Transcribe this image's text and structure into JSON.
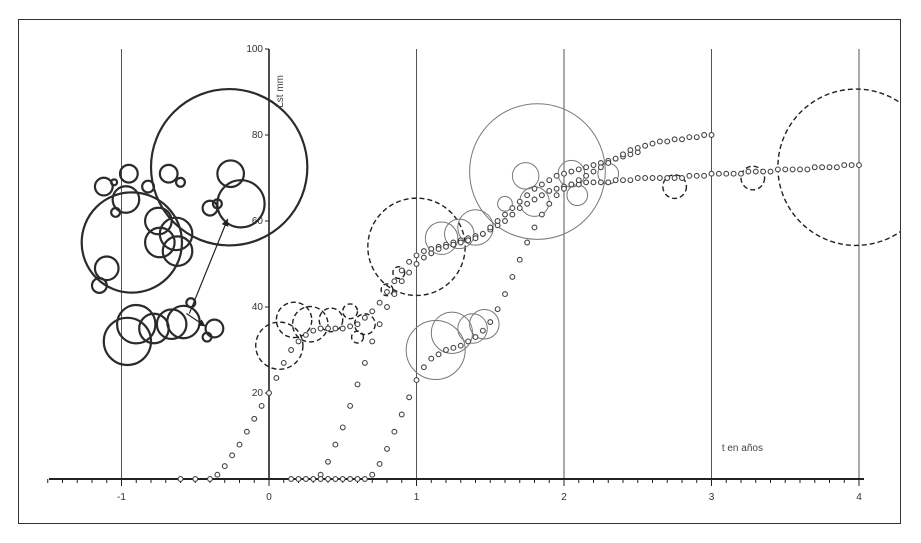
{
  "chart_data": {
    "type": "scatter",
    "title": "",
    "xlabel": "t en años",
    "ylabel": "Lst mm",
    "xlim": [
      -1.5,
      4.05
    ],
    "ylim": [
      0,
      100
    ],
    "x_ticks": [
      -1,
      0,
      1,
      2,
      3,
      4
    ],
    "x_tick_labels": [
      "-1",
      "0",
      "1",
      "2",
      "3",
      "4"
    ],
    "y_ticks": [
      20,
      40,
      60,
      80,
      100
    ],
    "y_tick_labels": [
      "20",
      "40",
      "60",
      "80",
      "100"
    ],
    "grid": "vertical lines at each year",
    "legend": "none",
    "series": [
      {
        "marker": "hollow circle",
        "points": [
          [
            -0.6,
            0
          ],
          [
            -0.5,
            0
          ],
          [
            -0.4,
            0
          ],
          [
            -0.35,
            1
          ],
          [
            -0.3,
            3
          ],
          [
            -0.25,
            5.5
          ],
          [
            -0.2,
            8
          ],
          [
            -0.15,
            11
          ],
          [
            -0.1,
            14
          ],
          [
            -0.05,
            17
          ],
          [
            0,
            20
          ],
          [
            0.05,
            23.5
          ],
          [
            0.1,
            27
          ],
          [
            0.15,
            30
          ],
          [
            0.2,
            32
          ],
          [
            0.25,
            33.5
          ],
          [
            0.3,
            34.5
          ],
          [
            0.35,
            35
          ],
          [
            0.4,
            35
          ],
          [
            0.45,
            35
          ],
          [
            0.5,
            35
          ],
          [
            0.55,
            35.5
          ],
          [
            0.6,
            36
          ],
          [
            0.65,
            37.5
          ],
          [
            0.7,
            39
          ],
          [
            0.75,
            41
          ],
          [
            0.8,
            43.5
          ],
          [
            0.85,
            46
          ],
          [
            0.9,
            48.5
          ],
          [
            0.95,
            50.5
          ],
          [
            1.0,
            52
          ],
          [
            1.05,
            53
          ],
          [
            1.1,
            53.5
          ],
          [
            1.15,
            54
          ],
          [
            1.2,
            54.5
          ],
          [
            1.25,
            55
          ],
          [
            1.3,
            55.5
          ],
          [
            1.35,
            56
          ],
          [
            1.4,
            56.5
          ],
          [
            1.45,
            57
          ],
          [
            1.5,
            58
          ],
          [
            1.55,
            59
          ],
          [
            1.6,
            60
          ],
          [
            1.65,
            61.5
          ],
          [
            1.7,
            63
          ],
          [
            1.75,
            64
          ],
          [
            1.8,
            65
          ],
          [
            1.85,
            66
          ],
          [
            1.9,
            67
          ],
          [
            1.95,
            67.5
          ],
          [
            2.0,
            68
          ],
          [
            2.05,
            68.5
          ],
          [
            2.1,
            68.5
          ],
          [
            2.15,
            69
          ],
          [
            2.2,
            69
          ],
          [
            2.25,
            69
          ],
          [
            2.3,
            69
          ],
          [
            2.35,
            69.5
          ],
          [
            2.4,
            69.5
          ],
          [
            2.45,
            69.5
          ],
          [
            2.5,
            70
          ],
          [
            2.55,
            70
          ],
          [
            2.6,
            70
          ],
          [
            2.65,
            70
          ],
          [
            2.7,
            70
          ],
          [
            2.75,
            70
          ],
          [
            2.8,
            70
          ],
          [
            2.85,
            70.5
          ],
          [
            2.9,
            70.5
          ],
          [
            2.95,
            70.5
          ],
          [
            3.0,
            71
          ],
          [
            3.05,
            71
          ],
          [
            3.1,
            71
          ],
          [
            3.15,
            71
          ],
          [
            3.2,
            71
          ],
          [
            3.25,
            71.5
          ],
          [
            3.3,
            71.5
          ],
          [
            3.35,
            71.5
          ],
          [
            3.4,
            71.5
          ],
          [
            3.45,
            72
          ],
          [
            3.5,
            72
          ],
          [
            3.55,
            72
          ],
          [
            3.6,
            72
          ],
          [
            3.65,
            72
          ],
          [
            3.7,
            72.5
          ],
          [
            3.75,
            72.5
          ],
          [
            3.8,
            72.5
          ],
          [
            3.85,
            72.5
          ],
          [
            3.9,
            73
          ],
          [
            3.95,
            73
          ],
          [
            4.0,
            73
          ]
        ]
      },
      {
        "marker": "hollow circle",
        "points": [
          [
            0.15,
            0
          ],
          [
            0.2,
            0
          ],
          [
            0.25,
            0
          ],
          [
            0.3,
            0
          ],
          [
            0.35,
            1
          ],
          [
            0.4,
            4
          ],
          [
            0.45,
            8
          ],
          [
            0.5,
            12
          ],
          [
            0.55,
            17
          ],
          [
            0.6,
            22
          ],
          [
            0.65,
            27
          ],
          [
            0.7,
            32
          ],
          [
            0.75,
            36
          ],
          [
            0.8,
            40
          ],
          [
            0.85,
            43
          ],
          [
            0.9,
            46
          ],
          [
            0.95,
            48
          ],
          [
            1.0,
            50
          ],
          [
            1.05,
            51.5
          ],
          [
            1.1,
            52.5
          ],
          [
            1.15,
            53.5
          ],
          [
            1.2,
            54
          ],
          [
            1.25,
            54.5
          ],
          [
            1.3,
            55
          ],
          [
            1.35,
            55.5
          ],
          [
            1.4,
            56
          ],
          [
            1.45,
            57
          ],
          [
            1.5,
            58.5
          ],
          [
            1.55,
            60
          ],
          [
            1.6,
            61.5
          ],
          [
            1.65,
            63
          ],
          [
            1.7,
            64.5
          ],
          [
            1.75,
            66
          ],
          [
            1.8,
            67.5
          ],
          [
            1.85,
            68.5
          ],
          [
            1.9,
            69.5
          ],
          [
            1.95,
            70.5
          ],
          [
            2.0,
            71
          ],
          [
            2.05,
            71.5
          ],
          [
            2.1,
            72
          ],
          [
            2.15,
            72.5
          ],
          [
            2.2,
            73
          ],
          [
            2.25,
            73.5
          ],
          [
            2.3,
            74
          ],
          [
            2.35,
            74.5
          ],
          [
            2.4,
            75
          ],
          [
            2.45,
            75.5
          ],
          [
            2.5,
            76
          ]
        ]
      },
      {
        "marker": "hollow circle",
        "points": [
          [
            0.35,
            0
          ],
          [
            0.4,
            0
          ],
          [
            0.45,
            0
          ],
          [
            0.5,
            0
          ],
          [
            0.55,
            0
          ],
          [
            0.6,
            0
          ],
          [
            0.65,
            0
          ],
          [
            0.7,
            1
          ],
          [
            0.75,
            3.5
          ],
          [
            0.8,
            7
          ],
          [
            0.85,
            11
          ],
          [
            0.9,
            15
          ],
          [
            0.95,
            19
          ],
          [
            1.0,
            23
          ],
          [
            1.05,
            26
          ],
          [
            1.1,
            28
          ],
          [
            1.15,
            29
          ],
          [
            1.2,
            30
          ],
          [
            1.25,
            30.5
          ],
          [
            1.3,
            31
          ],
          [
            1.35,
            32
          ],
          [
            1.4,
            33
          ],
          [
            1.45,
            34.5
          ],
          [
            1.5,
            36.5
          ],
          [
            1.55,
            39.5
          ],
          [
            1.6,
            43
          ],
          [
            1.65,
            47
          ],
          [
            1.7,
            51
          ],
          [
            1.75,
            55
          ],
          [
            1.8,
            58.5
          ],
          [
            1.85,
            61.5
          ],
          [
            1.9,
            64
          ],
          [
            1.95,
            66
          ],
          [
            2.0,
            67.5
          ],
          [
            2.05,
            68.5
          ],
          [
            2.1,
            69.5
          ],
          [
            2.15,
            70.5
          ],
          [
            2.2,
            71.5
          ],
          [
            2.25,
            72.5
          ],
          [
            2.3,
            73.5
          ],
          [
            2.35,
            74.5
          ],
          [
            2.4,
            75.5
          ],
          [
            2.45,
            76.5
          ],
          [
            2.5,
            77
          ],
          [
            2.55,
            77.5
          ],
          [
            2.6,
            78
          ],
          [
            2.65,
            78.5
          ],
          [
            2.7,
            78.5
          ],
          [
            2.75,
            79
          ],
          [
            2.8,
            79
          ],
          [
            2.85,
            79.5
          ],
          [
            2.9,
            79.5
          ],
          [
            2.95,
            80
          ],
          [
            3.0,
            80
          ]
        ]
      }
    ],
    "bubbles": [
      {
        "x": -0.93,
        "y": 55,
        "r": 0.34,
        "style": "solid-heavy"
      },
      {
        "x": -0.27,
        "y": 72.5,
        "r": 0.53,
        "style": "solid-heavy"
      },
      {
        "x": -1.12,
        "y": 68,
        "r": 0.06,
        "style": "solid-heavy"
      },
      {
        "x": -1.05,
        "y": 69,
        "r": 0.02,
        "style": "solid-heavy"
      },
      {
        "x": -0.95,
        "y": 71,
        "r": 0.06,
        "style": "solid-heavy"
      },
      {
        "x": -0.68,
        "y": 71,
        "r": 0.06,
        "style": "solid-heavy"
      },
      {
        "x": -0.6,
        "y": 69,
        "r": 0.03,
        "style": "solid-heavy"
      },
      {
        "x": -0.82,
        "y": 68,
        "r": 0.04,
        "style": "solid-heavy"
      },
      {
        "x": -0.97,
        "y": 65,
        "r": 0.09,
        "style": "solid-heavy"
      },
      {
        "x": -1.04,
        "y": 62,
        "r": 0.03,
        "style": "solid-heavy"
      },
      {
        "x": -0.75,
        "y": 60,
        "r": 0.09,
        "style": "solid-heavy"
      },
      {
        "x": -0.63,
        "y": 57,
        "r": 0.11,
        "style": "solid-heavy"
      },
      {
        "x": -0.74,
        "y": 55,
        "r": 0.1,
        "style": "solid-heavy"
      },
      {
        "x": -0.62,
        "y": 53,
        "r": 0.1,
        "style": "solid-heavy"
      },
      {
        "x": -1.1,
        "y": 49,
        "r": 0.08,
        "style": "solid-heavy"
      },
      {
        "x": -1.15,
        "y": 45,
        "r": 0.05,
        "style": "solid-heavy"
      },
      {
        "x": -0.26,
        "y": 71,
        "r": 0.09,
        "style": "solid-heavy"
      },
      {
        "x": -0.19,
        "y": 64,
        "r": 0.16,
        "style": "solid-heavy"
      },
      {
        "x": -0.4,
        "y": 63,
        "r": 0.05,
        "style": "solid-heavy"
      },
      {
        "x": -0.35,
        "y": 64,
        "r": 0.03,
        "style": "solid-heavy"
      },
      {
        "x": -0.96,
        "y": 32,
        "r": 0.16,
        "style": "solid-heavy"
      },
      {
        "x": -0.9,
        "y": 36,
        "r": 0.13,
        "style": "solid-heavy"
      },
      {
        "x": -0.78,
        "y": 35,
        "r": 0.1,
        "style": "solid-heavy"
      },
      {
        "x": -0.66,
        "y": 36,
        "r": 0.1,
        "style": "solid-heavy"
      },
      {
        "x": -0.58,
        "y": 36.5,
        "r": 0.11,
        "style": "solid-heavy"
      },
      {
        "x": -0.37,
        "y": 35,
        "r": 0.06,
        "style": "solid-heavy"
      },
      {
        "x": -0.42,
        "y": 33,
        "r": 0.03,
        "style": "solid-heavy"
      },
      {
        "x": -0.53,
        "y": 41,
        "r": 0.03,
        "style": "solid-heavy"
      },
      {
        "x": 0.07,
        "y": 31,
        "r": 0.16,
        "style": "dashed"
      },
      {
        "x": 0.17,
        "y": 37,
        "r": 0.12,
        "style": "dashed"
      },
      {
        "x": 0.28,
        "y": 36,
        "r": 0.12,
        "style": "dashed"
      },
      {
        "x": 0.42,
        "y": 37,
        "r": 0.08,
        "style": "dashed"
      },
      {
        "x": 0.55,
        "y": 39,
        "r": 0.05,
        "style": "dashed"
      },
      {
        "x": 0.65,
        "y": 36,
        "r": 0.07,
        "style": "dashed"
      },
      {
        "x": 0.6,
        "y": 33,
        "r": 0.04,
        "style": "dashed"
      },
      {
        "x": 1.0,
        "y": 54,
        "r": 0.33,
        "style": "dashed"
      },
      {
        "x": 0.8,
        "y": 44,
        "r": 0.04,
        "style": "dashed"
      },
      {
        "x": 0.88,
        "y": 48,
        "r": 0.04,
        "style": "dashed"
      },
      {
        "x": 2.75,
        "y": 68,
        "r": 0.08,
        "style": "dashed"
      },
      {
        "x": 3.28,
        "y": 70,
        "r": 0.08,
        "style": "dashed"
      },
      {
        "x": 3.98,
        "y": 72.5,
        "r": 0.53,
        "style": "dashed"
      },
      {
        "x": 1.13,
        "y": 30,
        "r": 0.2,
        "style": "solid-thin"
      },
      {
        "x": 1.24,
        "y": 34,
        "r": 0.14,
        "style": "solid-thin"
      },
      {
        "x": 1.38,
        "y": 35,
        "r": 0.1,
        "style": "solid-thin"
      },
      {
        "x": 1.46,
        "y": 36,
        "r": 0.1,
        "style": "solid-thin"
      },
      {
        "x": 1.17,
        "y": 56,
        "r": 0.11,
        "style": "solid-thin"
      },
      {
        "x": 1.29,
        "y": 57,
        "r": 0.1,
        "style": "solid-thin"
      },
      {
        "x": 1.4,
        "y": 58.5,
        "r": 0.12,
        "style": "solid-thin"
      },
      {
        "x": 1.82,
        "y": 71.5,
        "r": 0.46,
        "style": "solid-thin"
      },
      {
        "x": 1.74,
        "y": 70.5,
        "r": 0.09,
        "style": "solid-thin"
      },
      {
        "x": 1.8,
        "y": 64.5,
        "r": 0.1,
        "style": "solid-thin"
      },
      {
        "x": 2.05,
        "y": 71,
        "r": 0.09,
        "style": "solid-thin"
      },
      {
        "x": 2.09,
        "y": 66,
        "r": 0.07,
        "style": "solid-thin"
      },
      {
        "x": 2.3,
        "y": 71,
        "r": 0.07,
        "style": "solid-thin"
      },
      {
        "x": 1.6,
        "y": 64,
        "r": 0.05,
        "style": "solid-thin"
      }
    ],
    "arrows": [
      {
        "from": [
          -0.54,
          38.5
        ],
        "to": [
          -0.28,
          60.5
        ]
      },
      {
        "from": [
          -0.56,
          38.5
        ],
        "to": [
          -0.43,
          35.5
        ]
      }
    ],
    "x_minor_ticks_per_unit": 10
  }
}
